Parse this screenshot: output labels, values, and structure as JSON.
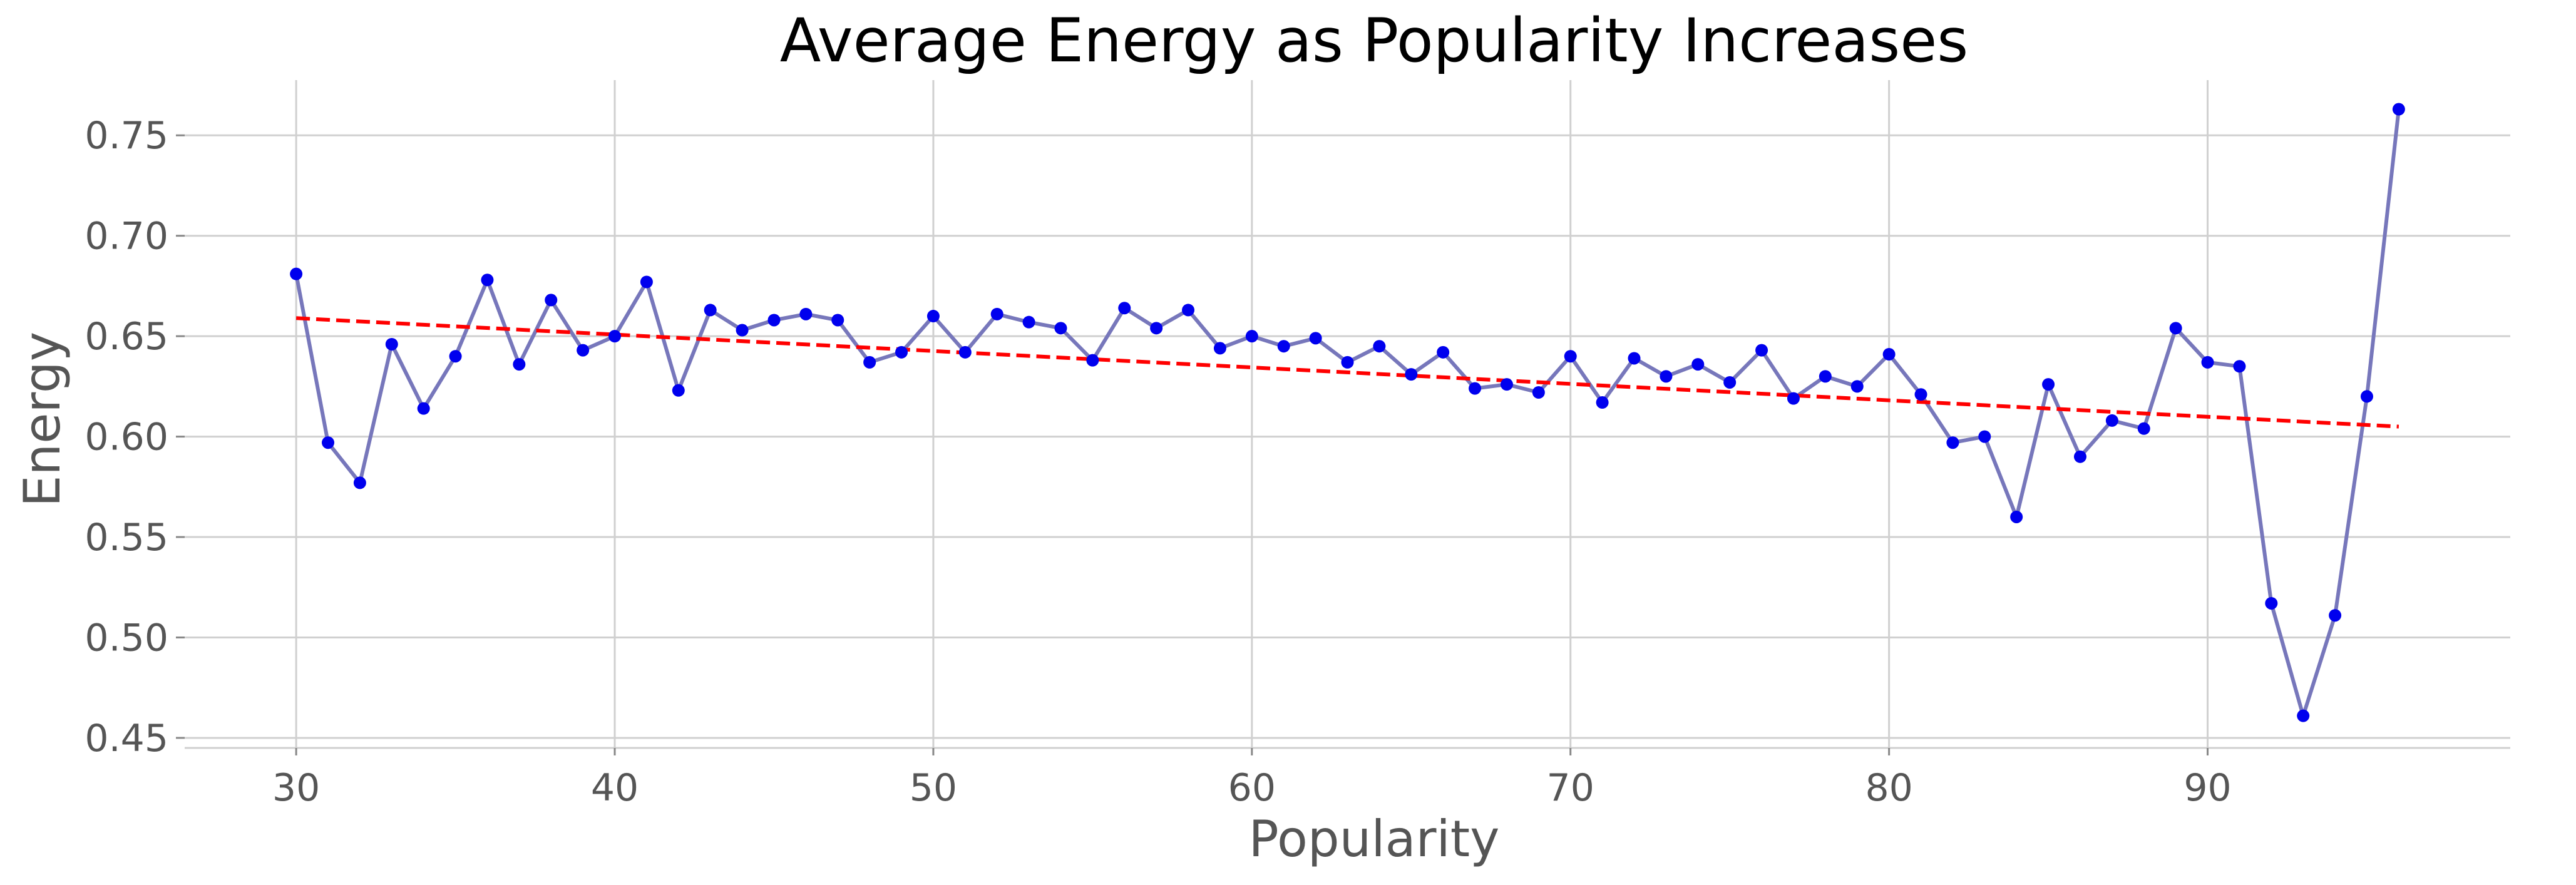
{
  "chart_data": {
    "type": "line",
    "title": "Average Energy as Popularity Increases",
    "xlabel": "Popularity",
    "ylabel": "Energy",
    "xlim": [
      26.5,
      99.5
    ],
    "ylim": [
      0.445,
      0.7775
    ],
    "x_ticks": [
      30,
      40,
      50,
      60,
      70,
      80,
      90
    ],
    "y_ticks": [
      0.45,
      0.5,
      0.55,
      0.6,
      0.65,
      0.7,
      0.75
    ],
    "y_tick_labels": [
      "0.45",
      "0.50",
      "0.55",
      "0.60",
      "0.65",
      "0.70",
      "0.75"
    ],
    "grid": true,
    "legend": "none",
    "series": [
      {
        "style": "line-with-markers",
        "line_color": "#7777bb",
        "marker_color": "#0000ee",
        "x": [
          30,
          31,
          32,
          33,
          34,
          35,
          36,
          37,
          38,
          39,
          40,
          41,
          42,
          43,
          44,
          45,
          46,
          47,
          48,
          49,
          50,
          51,
          52,
          53,
          54,
          55,
          56,
          57,
          58,
          59,
          60,
          61,
          62,
          63,
          64,
          65,
          66,
          67,
          68,
          69,
          70,
          71,
          72,
          73,
          74,
          75,
          76,
          77,
          78,
          79,
          80,
          81,
          82,
          83,
          84,
          85,
          86,
          87,
          88,
          89,
          90,
          91,
          92,
          93,
          94,
          95,
          96
        ],
        "y": [
          0.681,
          0.597,
          0.577,
          0.646,
          0.614,
          0.64,
          0.678,
          0.636,
          0.668,
          0.643,
          0.65,
          0.677,
          0.623,
          0.663,
          0.653,
          0.658,
          0.661,
          0.658,
          0.637,
          0.642,
          0.66,
          0.642,
          0.661,
          0.657,
          0.654,
          0.638,
          0.664,
          0.654,
          0.663,
          0.644,
          0.65,
          0.645,
          0.649,
          0.637,
          0.645,
          0.631,
          0.642,
          0.624,
          0.626,
          0.622,
          0.64,
          0.617,
          0.639,
          0.63,
          0.636,
          0.627,
          0.643,
          0.619,
          0.63,
          0.625,
          0.641,
          0.621,
          0.597,
          0.6,
          0.56,
          0.626,
          0.59,
          0.608,
          0.604,
          0.654,
          0.637,
          0.635,
          0.517,
          0.461,
          0.511,
          0.62,
          0.763
        ]
      },
      {
        "style": "dashed-trend",
        "line_color": "#ff0000",
        "x": [
          30,
          96
        ],
        "y": [
          0.659,
          0.605
        ]
      }
    ]
  }
}
